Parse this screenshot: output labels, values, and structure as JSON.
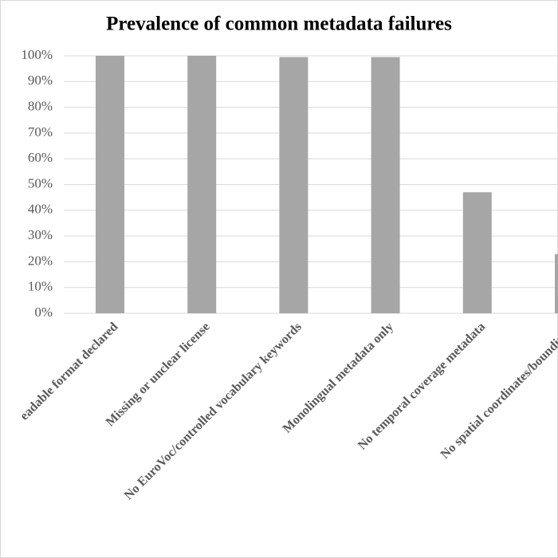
{
  "chart_data": {
    "type": "bar",
    "title": "Prevalence of common metadata failures",
    "categories": [
      "eadable format declared",
      "Missing or unclear license",
      "No EuroVoc/controlled vocabulary keywords",
      "Monolingual metadata only",
      "No temporal coverage metadata",
      "No spatial coordinates/bounding b"
    ],
    "values": [
      100,
      100,
      99.5,
      99.5,
      47,
      23
    ],
    "color": "#a6a6a6",
    "ylim": [
      0,
      100
    ],
    "yticks": [
      {
        "value": 0,
        "label": "0%"
      },
      {
        "value": 10,
        "label": "10%"
      },
      {
        "value": 20,
        "label": "20%"
      },
      {
        "value": 30,
        "label": "30%"
      },
      {
        "value": 40,
        "label": "40%"
      },
      {
        "value": 50,
        "label": "50%"
      },
      {
        "value": 60,
        "label": "60%"
      },
      {
        "value": 70,
        "label": "70%"
      },
      {
        "value": 80,
        "label": "80%"
      },
      {
        "value": 90,
        "label": "90%"
      },
      {
        "value": 100,
        "label": "100%"
      }
    ],
    "grid": true
  }
}
